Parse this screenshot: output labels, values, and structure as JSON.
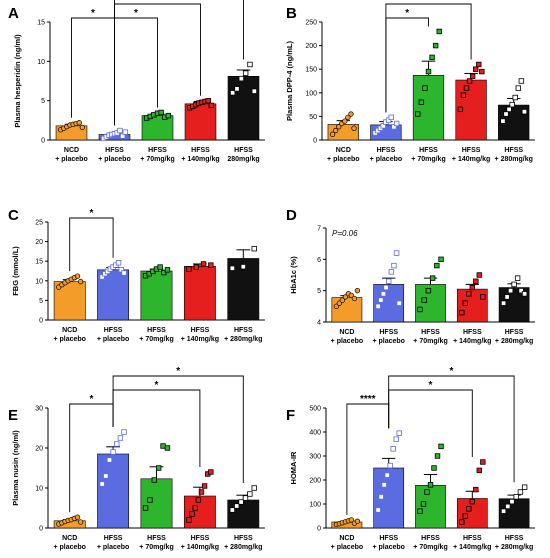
{
  "chart_data": [
    {
      "panel": "A",
      "type": "bar",
      "ylabel": "Plasma hesperidin (ng/ml)",
      "ylim": [
        0,
        15
      ],
      "yticks": [
        "0",
        "5",
        "10",
        "15"
      ],
      "categories": [
        [
          "NCD",
          "+ placebo"
        ],
        [
          "HFSS",
          "+ placebo"
        ],
        [
          "HFSS",
          "+ 70mg/kg"
        ],
        [
          "HFSS",
          "+ 140mg/kg"
        ],
        [
          "HFSS",
          "280mg/kg"
        ]
      ],
      "values": [
        1.8,
        0.7,
        3.1,
        4.6,
        8.1
      ],
      "errors": [
        0.2,
        0.2,
        0.2,
        0.3,
        0.8
      ],
      "points": [
        [
          1.3,
          1.5,
          1.7,
          1.9,
          2.0,
          2.1,
          2.2,
          1.6
        ],
        [
          0.2,
          0.4,
          0.6,
          0.7,
          0.8,
          0.9,
          1.2,
          0.5,
          1.0
        ],
        [
          2.8,
          3.0,
          3.2,
          3.4,
          3.5,
          2.9,
          3.1
        ],
        [
          4.1,
          4.3,
          4.5,
          4.7,
          4.8,
          4.9,
          5.0,
          4.4
        ],
        [
          6.0,
          6.5,
          7.8,
          8.5,
          9.6,
          6.2
        ]
      ],
      "brackets": [
        {
          "from": 0,
          "to": 1,
          "level": 0,
          "label": "*"
        },
        {
          "from": 1,
          "to": 2,
          "level": 0,
          "label": "*"
        },
        {
          "from": 1,
          "to": 3,
          "level": 1,
          "label": "*"
        },
        {
          "from": 1,
          "to": 4,
          "level": 2,
          "label": "*"
        }
      ]
    },
    {
      "panel": "B",
      "type": "bar",
      "ylabel": "Plasma DPP-4 (ng/mL)",
      "ylim": [
        0,
        250
      ],
      "yticks": [
        "0",
        "50",
        "100",
        "150",
        "200",
        "250"
      ],
      "categories": [
        [
          "NCD",
          "+ placebo"
        ],
        [
          "HFSS",
          "+ placebo"
        ],
        [
          "HFSS",
          "+ 70mg/kg"
        ],
        [
          "HFSS",
          "+ 140mg/kg"
        ],
        [
          "HFSS",
          "+ 280mg/kg"
        ]
      ],
      "values": [
        33,
        32,
        137,
        127,
        74
      ],
      "errors": [
        8,
        7,
        30,
        14,
        14
      ],
      "points": [
        [
          12,
          20,
          28,
          35,
          40,
          48,
          55,
          25
        ],
        [
          15,
          20,
          25,
          30,
          38,
          42,
          48,
          28,
          35
        ],
        [
          55,
          80,
          110,
          145,
          175,
          200,
          230
        ],
        [
          65,
          95,
          110,
          125,
          135,
          150,
          160,
          145
        ],
        [
          40,
          55,
          65,
          75,
          90,
          110,
          125,
          60
        ]
      ],
      "brackets": [
        {
          "from": 1,
          "to": 2,
          "level": 0,
          "label": "*"
        },
        {
          "from": 1,
          "to": 3,
          "level": 1,
          "label": "*"
        }
      ]
    },
    {
      "panel": "C",
      "type": "bar",
      "ylabel": "FBG (mmol/L)",
      "ylim": [
        0,
        25
      ],
      "yticks": [
        "0",
        "5",
        "10",
        "15",
        "20",
        "25"
      ],
      "categories": [
        [
          "NCD",
          "+ placebo"
        ],
        [
          "HFSS",
          "+ placebo"
        ],
        [
          "HFSS",
          "+ 70mg/kg"
        ],
        [
          "HFSS",
          "+ 140mg/kg"
        ],
        [
          "HFSS",
          "+ 280mg/kg"
        ]
      ],
      "values": [
        9.8,
        12.8,
        12.5,
        13.7,
        15.7
      ],
      "errors": [
        0.5,
        0.6,
        0.5,
        0.6,
        2.2
      ],
      "points": [
        [
          8.4,
          9.0,
          9.5,
          10.0,
          10.4,
          10.8,
          11.2,
          9.8
        ],
        [
          11.0,
          11.8,
          12.4,
          13.0,
          13.5,
          14.0,
          14.6,
          12.8,
          12.0
        ],
        [
          11.3,
          11.8,
          12.4,
          13.0,
          13.5,
          12.1,
          12.8
        ],
        [
          13.0,
          13.5,
          14.3,
          14.0
        ],
        [
          13.2,
          13.6,
          18.2
        ]
      ],
      "brackets": [
        {
          "from": 0,
          "to": 1,
          "level": 0,
          "label": "*"
        }
      ]
    },
    {
      "panel": "D",
      "type": "bar",
      "ylabel": "HbA1c (%)",
      "ylim": [
        4,
        7
      ],
      "yticks": [
        "4",
        "5",
        "6",
        "7"
      ],
      "annotation": "P=0.06",
      "categories": [
        [
          "NCD",
          "+ placebo"
        ],
        [
          "HFSS",
          "+ placebo"
        ],
        [
          "HFSS",
          "+ 70mg/kg"
        ],
        [
          "HFSS",
          "+ 140mg/kg"
        ],
        [
          "HFSS",
          "+ 280mg/kg"
        ]
      ],
      "values": [
        4.78,
        5.2,
        5.2,
        5.05,
        5.1
      ],
      "errors": [
        0.06,
        0.2,
        0.2,
        0.15,
        0.12
      ],
      "points": [
        [
          4.5,
          4.6,
          4.7,
          4.8,
          4.9,
          4.85,
          4.75,
          5.0
        ],
        [
          4.5,
          4.7,
          4.9,
          5.1,
          5.3,
          5.6,
          5.8,
          6.2,
          4.6
        ],
        [
          4.4,
          4.7,
          5.0,
          5.4,
          5.8,
          6.0
        ],
        [
          4.3,
          4.6,
          4.9,
          5.1,
          5.3,
          5.5,
          4.8
        ],
        [
          4.6,
          4.8,
          5.0,
          5.2,
          5.4,
          5.0,
          4.9
        ]
      ],
      "brackets": []
    },
    {
      "panel": "E",
      "type": "bar",
      "ylabel": "Plasma nusin (ng/ml)",
      "ylim": [
        0,
        30
      ],
      "yticks": [
        "0",
        "10",
        "20",
        "30"
      ],
      "categories": [
        [
          "NCD",
          "+ placebo"
        ],
        [
          "HFSS",
          "+ placebo"
        ],
        [
          "HFSS",
          "+ 70mg/kg"
        ],
        [
          "HFSS",
          "+ 140mg/kg"
        ],
        [
          "HFSS",
          "+ 280mg/kg"
        ]
      ],
      "values": [
        1.8,
        18.5,
        12.3,
        8.0,
        7.0
      ],
      "errors": [
        0.3,
        1.8,
        3.0,
        2.2,
        1.2
      ],
      "points": [
        [
          1.0,
          1.3,
          1.6,
          1.9,
          2.1,
          2.4,
          2.7,
          1.5
        ],
        [
          11.0,
          13.0,
          17.0,
          19.0,
          21.0,
          22.5,
          24.0
        ],
        [
          5.0,
          7.0,
          12.0,
          15.0,
          20.5,
          20.0
        ],
        [
          2.0,
          3.5,
          5.0,
          7.0,
          9.0,
          10.5,
          13.5,
          14.0
        ],
        [
          4.5,
          5.5,
          6.5,
          7.5,
          8.5,
          10.0
        ]
      ],
      "brackets": [
        {
          "from": 0,
          "to": 1,
          "level": 0,
          "label": "*"
        },
        {
          "from": 1,
          "to": 3,
          "level": 1,
          "label": "*"
        },
        {
          "from": 1,
          "to": 4,
          "level": 2,
          "label": "*"
        }
      ]
    },
    {
      "panel": "F",
      "type": "bar",
      "ylabel": "HOMA-IR",
      "ylim": [
        0,
        500
      ],
      "yticks": [
        "0",
        "100",
        "200",
        "300",
        "400",
        "500"
      ],
      "categories": [
        [
          "NCD",
          "+ placebo"
        ],
        [
          "HFSS",
          "+ placebo"
        ],
        [
          "HFSS",
          "+ 70mg/kg"
        ],
        [
          "HFSS",
          "+ 140mg/kg"
        ],
        [
          "HFSS",
          "+ 280mg/kg"
        ]
      ],
      "values": [
        25,
        250,
        178,
        123,
        122
      ],
      "errors": [
        4,
        40,
        45,
        30,
        15
      ],
      "points": [
        [
          15,
          18,
          22,
          26,
          30,
          34,
          20,
          28
        ],
        [
          75,
          130,
          180,
          220,
          260,
          330,
          370,
          395
        ],
        [
          70,
          100,
          150,
          180,
          250,
          300,
          340
        ],
        [
          25,
          50,
          80,
          110,
          160,
          240,
          275
        ],
        [
          70,
          90,
          110,
          130,
          150,
          170
        ]
      ],
      "brackets": [
        {
          "from": 0,
          "to": 1,
          "level": 0,
          "label": "****"
        },
        {
          "from": 1,
          "to": 3,
          "level": 1,
          "label": "*"
        },
        {
          "from": 1,
          "to": 4,
          "level": 2,
          "label": "*"
        }
      ]
    }
  ],
  "group_colors": [
    "#F39C2A",
    "#5B6BE0",
    "#2DB52D",
    "#E51E1E",
    "#111111"
  ],
  "marker_shapes": [
    "circle",
    "square",
    "square",
    "square",
    "square"
  ],
  "marker_fill": [
    "filled",
    "open",
    "filled",
    "filled",
    "open"
  ]
}
